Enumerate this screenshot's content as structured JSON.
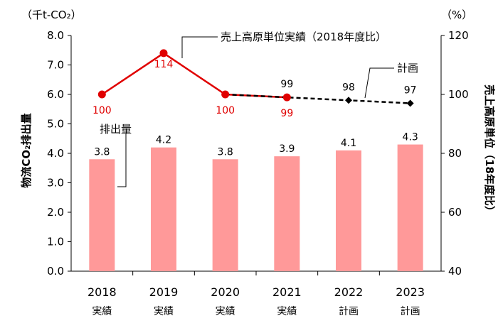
{
  "chart_data": {
    "type": "bar",
    "categories": [
      "2018",
      "2019",
      "2020",
      "2021",
      "2022",
      "2023"
    ],
    "category_sublabels": [
      "実績",
      "実績",
      "実績",
      "実績",
      "計画",
      "計画"
    ],
    "left_axis": {
      "unit": "（千t-CO₂）",
      "label": "物流CO₂排出量",
      "ylim": [
        0,
        8
      ],
      "ticks": [
        "0.0",
        "1.0",
        "2.0",
        "3.0",
        "4.0",
        "5.0",
        "6.0",
        "7.0",
        "8.0"
      ]
    },
    "right_axis": {
      "unit": "（%）",
      "label": "売上高原単位（18年度比）",
      "ylim": [
        40,
        120
      ],
      "ticks": [
        "40",
        "60",
        "80",
        "100",
        "120"
      ]
    },
    "series": [
      {
        "name": "排出量",
        "type": "bar",
        "axis": "left",
        "color": "#ff9999",
        "values": [
          3.8,
          4.2,
          3.8,
          3.9,
          4.1,
          4.3
        ],
        "labels": [
          "3.8",
          "4.2",
          "3.8",
          "3.9",
          "4.1",
          "4.3"
        ]
      },
      {
        "name": "売上高原単位実績（2018年度比）",
        "type": "line",
        "axis": "right",
        "color": "#e00000",
        "values": [
          100,
          114,
          100,
          99,
          null,
          null
        ],
        "labels": [
          "100",
          "114",
          "100",
          "99",
          "",
          ""
        ]
      },
      {
        "name": "計画",
        "type": "line-dashed",
        "axis": "right",
        "color": "#000000",
        "values": [
          null,
          null,
          100,
          99,
          98,
          97
        ],
        "labels": [
          "",
          "",
          "",
          "99",
          "98",
          "97"
        ]
      }
    ],
    "grid": false
  }
}
